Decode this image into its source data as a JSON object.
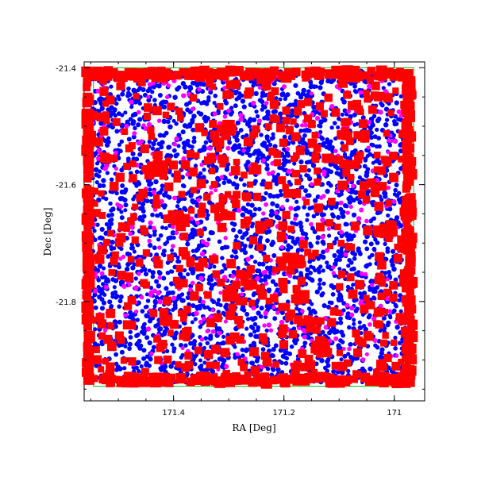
{
  "chart_data": {
    "type": "scatter",
    "title": "",
    "xlabel": "RA [Deg]",
    "ylabel": "Dec [Deg]",
    "x_reversed": true,
    "xlim": [
      171.562,
      170.945
    ],
    "ylim": [
      -21.97,
      -21.39
    ],
    "x_ticks": [
      {
        "value": 171.4,
        "label": "171.4"
      },
      {
        "value": 171.2,
        "label": "171.2"
      },
      {
        "value": 171.0,
        "label": "171"
      }
    ],
    "y_ticks": [
      {
        "value": -21.4,
        "label": "-21.4"
      },
      {
        "value": -21.6,
        "label": "-21.6"
      },
      {
        "value": -21.8,
        "label": "-21.8"
      }
    ],
    "grid": false,
    "legend": "none",
    "field_outline": {
      "ra": [
        171.545,
        170.965
      ],
      "dec": [
        -21.945,
        -21.4
      ]
    },
    "series": [
      {
        "color": "#0000ff",
        "marker": "circle",
        "count": 3200,
        "ra_range": [
          171.548,
          170.975
        ],
        "dec_range": [
          -21.94,
          -21.405
        ],
        "clusters": []
      },
      {
        "color": "#ff00ff",
        "marker": "circle",
        "count": 420,
        "ra_range": [
          171.548,
          170.975
        ],
        "dec_range": [
          -21.94,
          -21.405
        ],
        "clusters": []
      },
      {
        "color": "#ff0000",
        "marker": "square",
        "count": 560,
        "ra_range": [
          171.548,
          170.975
        ],
        "dec_range": [
          -21.94,
          -21.405
        ],
        "border_count": 520,
        "clusters": [
          {
            "ra": 171.18,
            "dec": -21.73
          },
          {
            "ra": 171.39,
            "dec": -21.66
          },
          {
            "ra": 171.13,
            "dec": -21.88
          },
          {
            "ra": 171.43,
            "dec": -21.57
          },
          {
            "ra": 171.02,
            "dec": -21.68
          },
          {
            "ra": 171.3,
            "dec": -21.5
          }
        ]
      }
    ]
  }
}
